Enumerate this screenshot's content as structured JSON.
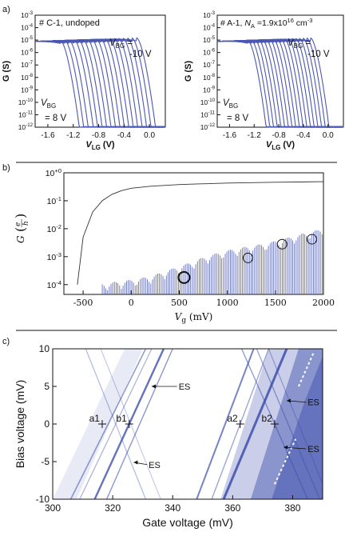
{
  "colors": {
    "curve": "#4a57b3",
    "fill": "#3f4fae",
    "axis": "#111111",
    "bg": "#ffffff"
  },
  "panel_labels": {
    "a": "a)",
    "b": "b)",
    "c": "c)"
  },
  "chart_data": [
    {
      "id": "a-left",
      "type": "line",
      "xlabel": "V",
      "xlabel_sub": "LG",
      "xlabel_unit": " (V)",
      "ylabel": "G (S)",
      "xlim": [
        -1.8,
        0.25
      ],
      "ylim_exp": [
        -12,
        -3
      ],
      "xticks": [
        "-1.6",
        "-1.2",
        "-0.8",
        "-0.4",
        "0.0"
      ],
      "yticks": [
        "10-3",
        "10-4",
        "10-5",
        "10-6",
        "10-7",
        "10-8",
        "10-9",
        "10-10",
        "10-11",
        "10-12"
      ],
      "annotation": "# C-1, undoped",
      "vbg_top": {
        "label": "V",
        "sub": "BG",
        "eq": " =",
        "value": "-10 V"
      },
      "vbg_bottom": {
        "label": "V",
        "sub": "BG",
        "value": "= 8 V"
      },
      "series_thresholds_V": [
        -1.22,
        -1.15,
        -1.08,
        -1.0,
        -0.93,
        -0.86,
        -0.79,
        -0.72,
        -0.65,
        -0.58,
        -0.51,
        -0.44,
        -0.37,
        -0.3,
        -0.23,
        -0.16,
        -0.09,
        -0.02
      ],
      "on_level_exp": -5.1
    },
    {
      "id": "a-right",
      "type": "line",
      "xlabel": "V",
      "xlabel_sub": "LG",
      "xlabel_unit": " (V)",
      "ylabel": "G (S)",
      "xlim": [
        -1.8,
        0.25
      ],
      "ylim_exp": [
        -12,
        -3
      ],
      "xticks": [
        "-1.6",
        "-1.2",
        "-0.8",
        "-0.4",
        "0.0"
      ],
      "yticks": [
        "10-3",
        "10-4",
        "10-5",
        "10-6",
        "10-7",
        "10-8",
        "10-9",
        "10-10",
        "10-11",
        "10-12"
      ],
      "annotation_prefix": "# A-1, ",
      "annotation_var": "N",
      "annotation_sub": "A",
      "annotation_val": " =1.9x10",
      "annotation_exp": "16",
      "annotation_unit": " cm",
      "annotation_unit_exp": "-3",
      "vbg_top": {
        "label": "V",
        "sub": "BG",
        "eq": " =",
        "value": "-10 V"
      },
      "vbg_bottom": {
        "label": "V",
        "sub": "BG",
        "value": "= 8 V"
      },
      "series_thresholds_V": [
        -1.12,
        -1.06,
        -1.0,
        -0.94,
        -0.88,
        -0.82,
        -0.76,
        -0.7,
        -0.64,
        -0.58,
        -0.52,
        -0.46,
        -0.4,
        -0.34,
        -0.28,
        -0.22,
        -0.16,
        -0.1
      ],
      "on_level_exp": -5.1
    },
    {
      "id": "b",
      "type": "line",
      "xlabel": "V",
      "xlabel_sub": "g",
      "xlabel_unit": " (mV)",
      "ylabel": "G",
      "ylabel_unit_num": "e",
      "ylabel_unit_den": "h",
      "xlim": [
        -700,
        2000
      ],
      "ylim_exp": [
        -4.35,
        0
      ],
      "xticks": [
        {
          "v": -500,
          "label": "-500"
        },
        {
          "v": 0,
          "label": "0"
        },
        {
          "v": 500,
          "label": "500"
        },
        {
          "v": 1000,
          "label": "1000"
        },
        {
          "v": 1500,
          "label": "1500"
        },
        {
          "v": 2000,
          "label": "2000"
        }
      ],
      "yticks": [
        {
          "e": 0,
          "label": "10+0"
        },
        {
          "e": -1,
          "label": "10-1"
        },
        {
          "e": -2,
          "label": "10-2"
        },
        {
          "e": -3,
          "label": "10-3"
        },
        {
          "e": -4,
          "label": "10-4"
        }
      ],
      "series": [
        {
          "name": "",
          "x": [
            -560,
            -500,
            -400,
            -300,
            -200,
            -100,
            0,
            200,
            500,
            1000,
            1500,
            2000
          ],
          "y": [
            0.0001,
            0.005,
            0.04,
            0.1,
            0.17,
            0.23,
            0.28,
            0.33,
            0.38,
            0.43,
            0.46,
            0.48
          ]
        }
      ],
      "peaks": {
        "x_start": -300,
        "x_end": 2000,
        "spacing_mV": 18,
        "envelope_x": [
          -300,
          0,
          200,
          400,
          600,
          800,
          1000,
          1200,
          1400,
          1600,
          1800,
          2000
        ],
        "envelope_y": [
          0.00011,
          0.00015,
          0.0002,
          0.00035,
          0.0006,
          0.0011,
          0.0017,
          0.0023,
          0.003,
          0.0045,
          0.007,
          0.01
        ]
      },
      "circles": [
        {
          "x": 550,
          "y": 0.00018,
          "bold": true
        },
        {
          "x": 1215,
          "y": 0.0009
        },
        {
          "x": 1570,
          "y": 0.0028
        },
        {
          "x": 1880,
          "y": 0.0042
        }
      ]
    },
    {
      "id": "c",
      "type": "heatmap",
      "xlabel": "Gate voltage (mV)",
      "ylabel": "Bias voltage (mV)",
      "xlim": [
        300,
        390
      ],
      "ylim": [
        -10,
        10
      ],
      "xticks": [
        "300",
        "320",
        "340",
        "360",
        "380"
      ],
      "yticks": [
        "10",
        "5",
        "0",
        "-5",
        "-10"
      ],
      "points": [
        {
          "label": "a1",
          "x": 316.5,
          "y": 0
        },
        {
          "label": "b1",
          "x": 325.5,
          "y": 0
        },
        {
          "label": "a2",
          "x": 362.5,
          "y": 0
        },
        {
          "label": "b2",
          "x": 374,
          "y": 0
        }
      ],
      "annotations": [
        {
          "text": "ES",
          "x": 342,
          "y": 5,
          "tip_x": 333,
          "tip_y": 5
        },
        {
          "text": "ES",
          "x": 332,
          "y": -5.4,
          "tip_x": 327,
          "tip_y": -5.1
        },
        {
          "text": "ES",
          "x": 385,
          "y": 2.9,
          "tip_x": 378,
          "tip_y": 3.1
        },
        {
          "text": "ES",
          "x": 385,
          "y": -3.3,
          "tip_x": 377,
          "tip_y": -3.1
        }
      ]
    }
  ]
}
